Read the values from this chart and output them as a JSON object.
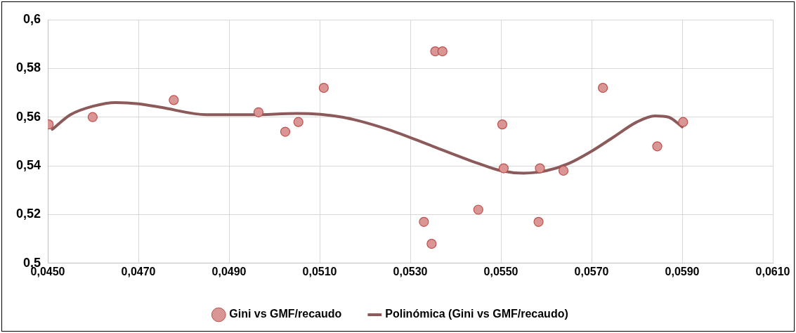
{
  "chart_data": {
    "type": "scatter",
    "xlim": [
      0.045,
      0.061
    ],
    "ylim": [
      0.5,
      0.6
    ],
    "xticks": [
      {
        "value": 0.045,
        "label": "0,0450"
      },
      {
        "value": 0.047,
        "label": "0,0470"
      },
      {
        "value": 0.049,
        "label": "0,0490"
      },
      {
        "value": 0.051,
        "label": "0,0510"
      },
      {
        "value": 0.053,
        "label": "0,0530"
      },
      {
        "value": 0.055,
        "label": "0,0550"
      },
      {
        "value": 0.057,
        "label": "0,0570"
      },
      {
        "value": 0.059,
        "label": "0,0590"
      },
      {
        "value": 0.061,
        "label": "0,0610"
      }
    ],
    "yticks": [
      {
        "value": 0.5,
        "label": "0,5"
      },
      {
        "value": 0.52,
        "label": "0,52"
      },
      {
        "value": 0.54,
        "label": "0,54"
      },
      {
        "value": 0.56,
        "label": "0,56"
      },
      {
        "value": 0.58,
        "label": "0,58"
      },
      {
        "value": 0.6,
        "label": "0,6"
      }
    ],
    "grid": true,
    "legend": "bottom",
    "series": [
      {
        "name": "Gini vs GMF/recaudo",
        "marker": "circle",
        "color": "#d99694",
        "x": [
          0.04502,
          0.04599,
          0.04778,
          0.04965,
          0.05024,
          0.05053,
          0.05109,
          0.0533,
          0.05347,
          0.05355,
          0.05371,
          0.0545,
          0.05503,
          0.05506,
          0.05586,
          0.05583,
          0.05638,
          0.05725,
          0.05845,
          0.05902
        ],
        "values": [
          0.557,
          0.56,
          0.567,
          0.562,
          0.554,
          0.558,
          0.572,
          0.517,
          0.508,
          0.587,
          0.587,
          0.522,
          0.557,
          0.539,
          0.539,
          0.517,
          0.538,
          0.572,
          0.548,
          0.558
        ]
      },
      {
        "name": "Polinómica (Gini vs GMF/recaudo)",
        "type": "line",
        "marker": "none",
        "color": "#8c5a5a",
        "x": [
          0.0451,
          0.0455,
          0.046,
          0.0465,
          0.047,
          0.0475,
          0.0485,
          0.0495,
          0.0505,
          0.0515,
          0.0525,
          0.0535,
          0.0545,
          0.055,
          0.0555,
          0.056,
          0.0565,
          0.057,
          0.0575,
          0.058,
          0.0584,
          0.0587,
          0.059
        ],
        "values": [
          0.555,
          0.561,
          0.5645,
          0.566,
          0.5655,
          0.564,
          0.561,
          0.561,
          0.5615,
          0.56,
          0.555,
          0.548,
          0.541,
          0.538,
          0.537,
          0.538,
          0.541,
          0.546,
          0.552,
          0.558,
          0.5605,
          0.56,
          0.556
        ]
      }
    ]
  }
}
